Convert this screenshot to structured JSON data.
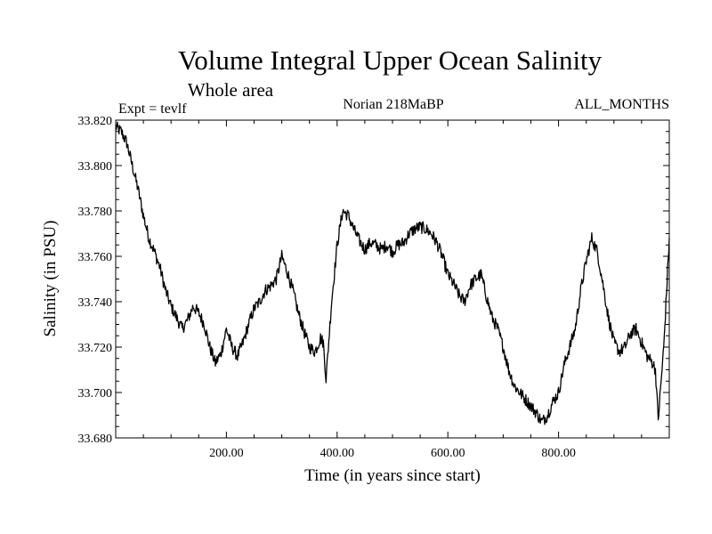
{
  "chart_data": {
    "type": "line",
    "title": "Volume Integral Upper Ocean Salinity",
    "subtitle": "Whole area",
    "experiment": "Expt = tevlf",
    "period": "Norian 218MaBP",
    "months": "ALL_MONTHS",
    "xlabel": "Time (in years since start)",
    "ylabel": "Salinity (in PSU)",
    "xlim": [
      0,
      1000
    ],
    "ylim": [
      33.68,
      33.82
    ],
    "xticks": [
      200,
      400,
      600,
      800
    ],
    "xtick_labels": [
      "200.00",
      "400.00",
      "600.00",
      "800.00"
    ],
    "yticks": [
      33.68,
      33.7,
      33.72,
      33.74,
      33.76,
      33.78,
      33.8,
      33.82
    ],
    "ytick_labels": [
      "33.680",
      "33.700",
      "33.720",
      "33.740",
      "33.760",
      "33.780",
      "33.800",
      "33.820"
    ],
    "grid": false,
    "series": [
      {
        "name": "salinity",
        "color": "#000000",
        "x": [
          0,
          10,
          20,
          30,
          40,
          50,
          60,
          70,
          80,
          90,
          100,
          110,
          120,
          130,
          140,
          150,
          160,
          170,
          180,
          190,
          200,
          210,
          220,
          230,
          240,
          250,
          260,
          270,
          280,
          290,
          300,
          310,
          320,
          330,
          340,
          350,
          360,
          370,
          375,
          380,
          390,
          400,
          410,
          420,
          430,
          440,
          450,
          460,
          470,
          480,
          490,
          500,
          510,
          520,
          530,
          540,
          550,
          560,
          570,
          580,
          590,
          600,
          610,
          620,
          630,
          640,
          650,
          660,
          670,
          680,
          690,
          700,
          710,
          720,
          730,
          740,
          750,
          760,
          770,
          780,
          790,
          800,
          810,
          820,
          830,
          840,
          850,
          860,
          870,
          880,
          890,
          900,
          910,
          920,
          930,
          940,
          950,
          960,
          970,
          975,
          980,
          990,
          1000
        ],
        "values": [
          33.817,
          33.815,
          33.81,
          33.8,
          33.79,
          33.778,
          33.768,
          33.762,
          33.755,
          33.745,
          33.738,
          33.733,
          33.728,
          33.732,
          33.738,
          33.735,
          33.73,
          33.72,
          33.713,
          33.717,
          33.728,
          33.72,
          33.716,
          33.722,
          33.73,
          33.737,
          33.74,
          33.745,
          33.747,
          33.75,
          33.76,
          33.753,
          33.745,
          33.735,
          33.727,
          33.72,
          33.718,
          33.724,
          33.722,
          33.706,
          33.74,
          33.765,
          33.78,
          33.778,
          33.772,
          33.767,
          33.763,
          33.766,
          33.765,
          33.763,
          33.765,
          33.762,
          33.765,
          33.766,
          33.77,
          33.772,
          33.773,
          33.772,
          33.77,
          33.766,
          33.76,
          33.752,
          33.748,
          33.743,
          33.74,
          33.747,
          33.75,
          33.752,
          33.742,
          33.733,
          33.728,
          33.72,
          33.71,
          33.703,
          33.7,
          33.697,
          33.694,
          33.691,
          33.687,
          33.69,
          33.696,
          33.7,
          33.712,
          33.72,
          33.728,
          33.745,
          33.758,
          33.768,
          33.762,
          33.748,
          33.733,
          33.722,
          33.718,
          33.72,
          33.726,
          33.728,
          33.722,
          33.716,
          33.713,
          33.71,
          33.688,
          33.72,
          33.768
        ]
      }
    ]
  }
}
